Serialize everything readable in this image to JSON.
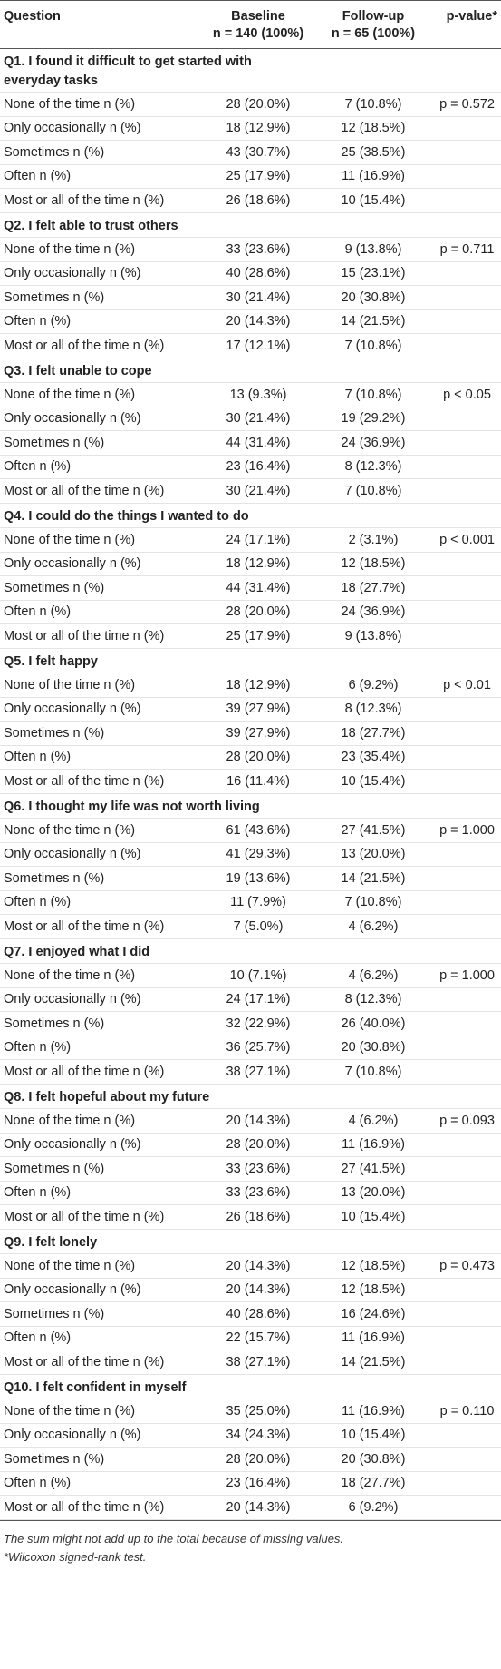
{
  "header": {
    "question": "Question",
    "baseline": "Baseline",
    "baseline_n": "n = 140 (100%)",
    "followup": "Follow-up",
    "followup_n": "n = 65 (100%)",
    "p_value": "p-value*"
  },
  "sections": [
    {
      "question": "Q1. I found it difficult to get started with everyday tasks",
      "p": "p = 0.572",
      "rows": [
        [
          "None of the time n (%)",
          "28 (20.0%)",
          "7 (10.8%)"
        ],
        [
          "Only occasionally n (%)",
          "18 (12.9%)",
          "12 (18.5%)"
        ],
        [
          "Sometimes n (%)",
          "43 (30.7%)",
          "25 (38.5%)"
        ],
        [
          "Often n (%)",
          "25 (17.9%)",
          "11 (16.9%)"
        ],
        [
          "Most or all of the time n (%)",
          "26 (18.6%)",
          "10 (15.4%)"
        ]
      ]
    },
    {
      "question": "Q2. I felt able to trust others",
      "p": "p = 0.711",
      "rows": [
        [
          "None of the time n (%)",
          "33 (23.6%)",
          "9 (13.8%)"
        ],
        [
          "Only occasionally n (%)",
          "40 (28.6%)",
          "15 (23.1%)"
        ],
        [
          "Sometimes n (%)",
          "30 (21.4%)",
          "20 (30.8%)"
        ],
        [
          "Often n (%)",
          "20 (14.3%)",
          "14 (21.5%)"
        ],
        [
          "Most or all of the time n (%)",
          "17 (12.1%)",
          "7 (10.8%)"
        ]
      ]
    },
    {
      "question": "Q3. I felt unable to cope",
      "p": "p < 0.05",
      "rows": [
        [
          "None of the time n (%)",
          "13 (9.3%)",
          "7 (10.8%)"
        ],
        [
          "Only occasionally n (%)",
          "30 (21.4%)",
          "19 (29.2%)"
        ],
        [
          "Sometimes n (%)",
          "44 (31.4%)",
          "24 (36.9%)"
        ],
        [
          "Often n (%)",
          "23 (16.4%)",
          "8 (12.3%)"
        ],
        [
          "Most or all of the time n (%)",
          "30 (21.4%)",
          "7 (10.8%)"
        ]
      ]
    },
    {
      "question": "Q4. I could do the things I wanted to do",
      "p": "p < 0.001",
      "rows": [
        [
          "None of the time n (%)",
          "24 (17.1%)",
          "2 (3.1%)"
        ],
        [
          "Only occasionally n (%)",
          "18 (12.9%)",
          "12 (18.5%)"
        ],
        [
          "Sometimes n (%)",
          "44 (31.4%)",
          "18 (27.7%)"
        ],
        [
          "Often n (%)",
          "28 (20.0%)",
          "24 (36.9%)"
        ],
        [
          "Most or all of the time n (%)",
          "25 (17.9%)",
          "9 (13.8%)"
        ]
      ]
    },
    {
      "question": "Q5. I felt happy",
      "p": "p < 0.01",
      "rows": [
        [
          "None of the time n (%)",
          "18 (12.9%)",
          "6 (9.2%)"
        ],
        [
          "Only occasionally n (%)",
          "39 (27.9%)",
          "8 (12.3%)"
        ],
        [
          "Sometimes n (%)",
          "39 (27.9%)",
          "18 (27.7%)"
        ],
        [
          "Often n (%)",
          "28 (20.0%)",
          "23 (35.4%)"
        ],
        [
          "Most or all of the time n (%)",
          "16 (11.4%)",
          "10 (15.4%)"
        ]
      ]
    },
    {
      "question": "Q6. I thought my life was not worth living",
      "p": "p = 1.000",
      "rows": [
        [
          "None of the time n (%)",
          "61 (43.6%)",
          "27 (41.5%)"
        ],
        [
          "Only occasionally n (%)",
          "41 (29.3%)",
          "13 (20.0%)"
        ],
        [
          "Sometimes n (%)",
          "19 (13.6%)",
          "14 (21.5%)"
        ],
        [
          "Often n (%)",
          "11 (7.9%)",
          "7 (10.8%)"
        ],
        [
          "Most or all of the time n (%)",
          "7 (5.0%)",
          "4 (6.2%)"
        ]
      ]
    },
    {
      "question": "Q7. I enjoyed what I did",
      "p": "p = 1.000",
      "rows": [
        [
          "None of the time n (%)",
          "10 (7.1%)",
          "4 (6.2%)"
        ],
        [
          "Only occasionally n (%)",
          "24 (17.1%)",
          "8 (12.3%)"
        ],
        [
          "Sometimes n (%)",
          "32 (22.9%)",
          "26 (40.0%)"
        ],
        [
          "Often n (%)",
          "36 (25.7%)",
          "20 (30.8%)"
        ],
        [
          "Most or all of the time n (%)",
          "38 (27.1%)",
          "7 (10.8%)"
        ]
      ]
    },
    {
      "question": "Q8. I felt hopeful about my future",
      "p": "p = 0.093",
      "rows": [
        [
          "None of the time n (%)",
          "20 (14.3%)",
          "4 (6.2%)"
        ],
        [
          "Only occasionally n (%)",
          "28 (20.0%)",
          "11 (16.9%)"
        ],
        [
          "Sometimes n (%)",
          "33 (23.6%)",
          "27 (41.5%)"
        ],
        [
          "Often n (%)",
          "33 (23.6%)",
          "13 (20.0%)"
        ],
        [
          "Most or all of the time n (%)",
          "26 (18.6%)",
          "10 (15.4%)"
        ]
      ]
    },
    {
      "question": "Q9. I felt lonely",
      "p": "p = 0.473",
      "rows": [
        [
          "None of the time n (%)",
          "20 (14.3%)",
          "12 (18.5%)"
        ],
        [
          "Only occasionally n (%)",
          "20 (14.3%)",
          "12 (18.5%)"
        ],
        [
          "Sometimes n (%)",
          "40 (28.6%)",
          "16 (24.6%)"
        ],
        [
          "Often n (%)",
          "22 (15.7%)",
          "11 (16.9%)"
        ],
        [
          "Most or all of the time n (%)",
          "38 (27.1%)",
          "14 (21.5%)"
        ]
      ]
    },
    {
      "question": "Q10. I felt confident in myself",
      "p": "p = 0.110",
      "rows": [
        [
          "None of the time n (%)",
          "35 (25.0%)",
          "11 (16.9%)"
        ],
        [
          "Only occasionally n (%)",
          "34 (24.3%)",
          "10 (15.4%)"
        ],
        [
          "Sometimes n (%)",
          "28 (20.0%)",
          "20 (30.8%)"
        ],
        [
          "Often n (%)",
          "23 (16.4%)",
          "18 (27.7%)"
        ],
        [
          "Most or all of the time n (%)",
          "20 (14.3%)",
          "6 (9.2%)"
        ]
      ]
    }
  ],
  "footnotes": [
    "The sum might not add up to the total because of missing values.",
    "*Wilcoxon signed-rank test."
  ]
}
